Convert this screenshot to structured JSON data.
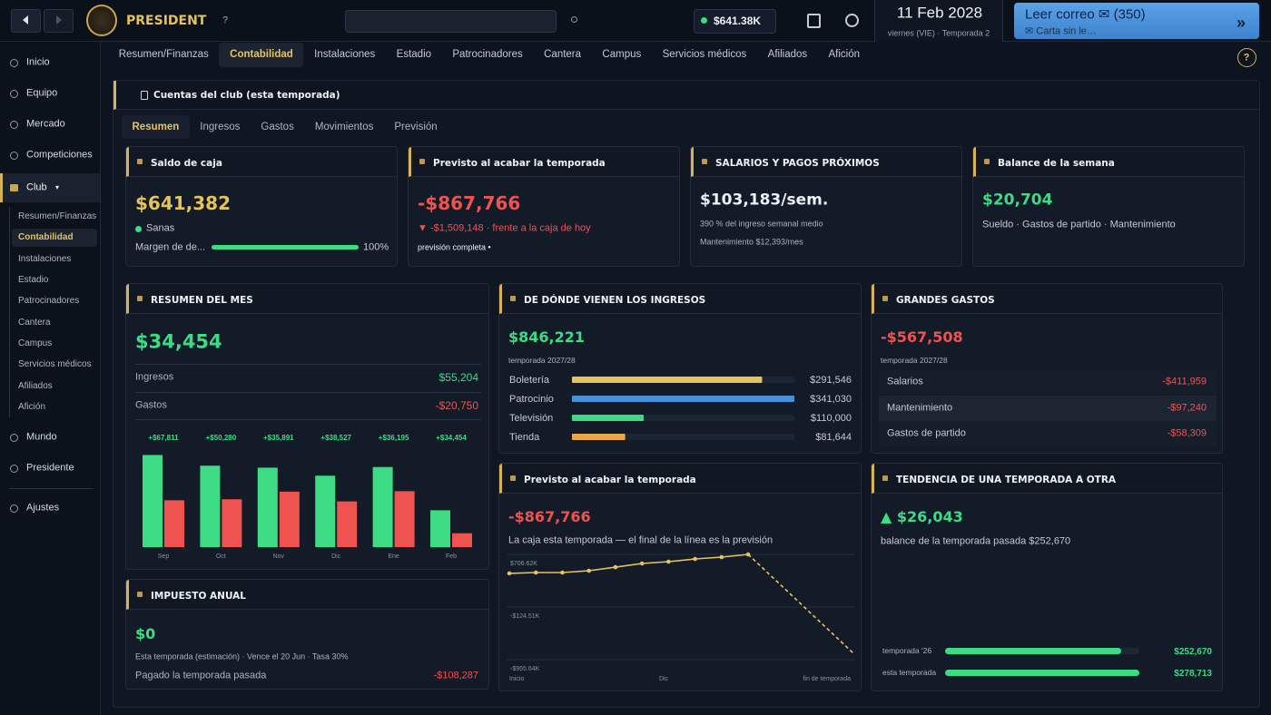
{
  "topbar": {
    "logo": "PRESIDENT",
    "help": "?",
    "balance": "$641.38K",
    "date": "11 Feb 2028",
    "date_sub": "viernes (VIE) · Temporada 2",
    "mail": "Leer correo ✉ (350)",
    "mail_sub": "✉ Carta sin le…",
    "mail_arrow": "»"
  },
  "tabs": {
    "items": [
      "Resumen/Finanzas",
      "Contabilidad",
      "Instalaciones",
      "Estadio",
      "Patrocinadores",
      "Cantera",
      "Campus",
      "Servicios médicos",
      "Afiliados",
      "Afición"
    ],
    "active": 1,
    "help": "?"
  },
  "sidebar": {
    "top": [
      "Inicio",
      "Equipo",
      "Mercado",
      "Competiciones"
    ],
    "club": "Club",
    "club_caret": "▾",
    "sub": [
      "Resumen/Finanzas",
      "Contabilidad",
      "Instalaciones",
      "Estadio",
      "Patrocinadores",
      "Cantera",
      "Campus",
      "Servicios médicos",
      "Afiliados",
      "Afición"
    ],
    "sub_active": 1,
    "bottom": [
      "Mundo",
      "Presidente"
    ],
    "settings": "Ajustes"
  },
  "panel": {
    "title": "Cuentas del club (esta temporada)",
    "subtabs": [
      "Resumen",
      "Ingresos",
      "Gastos",
      "Movimientos",
      "Previsión"
    ],
    "subtab_active": 0
  },
  "cards": {
    "cash": {
      "title": "Saldo de caja",
      "value": "$641,382",
      "status": "Sanas",
      "margin_label": "Margen de de...",
      "margin": {
        "value": 100,
        "label": "100%"
      }
    },
    "forecast": {
      "title": "Previsto al acabar la temporada",
      "value": "-$867,766",
      "delta": "▼ -$1,509,148 · frente a la caja de hoy",
      "note": "previsión completa •"
    },
    "wages": {
      "title": "SALARIOS Y PAGOS PRÓXIMOS",
      "value": "$103,183/sem.",
      "ratio": "390 % del ingreso semanal medio",
      "maintenance": "Mantenimiento $12,393/mes"
    },
    "week": {
      "title": "Balance de la semana",
      "value": "$20,704",
      "note": "Sueldo · Gastos de partido · Mantenimiento"
    }
  },
  "month": {
    "title": "RESUMEN DEL MES",
    "value": "$34,454",
    "rows": [
      {
        "label": "Ingresos",
        "value": "$55,204"
      },
      {
        "label": "Gastos",
        "value": "-$20,750"
      }
    ],
    "chart_data": {
      "type": "bar",
      "categories": [
        "Sep",
        "Oct",
        "Nov",
        "Dic",
        "Ene",
        "Feb"
      ],
      "series": [
        {
          "color": "#3ddc84",
          "values": [
            138000,
            122000,
            119000,
            107000,
            120000,
            55204
          ]
        },
        {
          "color": "#ef5350",
          "values": [
            70189,
            71720,
            83109,
            68473,
            83805,
            20750
          ]
        }
      ],
      "totals": [
        "+$67,811",
        "+$50,280",
        "+$35,891",
        "+$38,527",
        "+$36,195",
        "+$34,454"
      ],
      "ylim": [
        0,
        140000
      ]
    }
  },
  "income": {
    "title": "DE DÓNDE VIENEN LOS INGRESOS",
    "value": "$846,221",
    "period": "temporada 2027/28",
    "chart_data": {
      "type": "hbar",
      "categories": [
        "Boletería",
        "Patrocinio",
        "Televisión",
        "Tienda"
      ],
      "values": [
        291546,
        341030,
        110000,
        81644
      ],
      "value_labels": [
        "$291,546",
        "$341,030",
        "$110,000",
        "$81,644"
      ],
      "colors": [
        "#e6c35c",
        "#4a90d9",
        "#3ddc84",
        "#e8a84a"
      ]
    }
  },
  "expenses": {
    "title": "GRANDES GASTOS",
    "value": "-$567,508",
    "period": "temporada 2027/28",
    "rows": [
      {
        "label": "Salarios",
        "value": "-$411,959"
      },
      {
        "label": "Mantenimiento",
        "value": "-$97,240"
      },
      {
        "label": "Gastos de partido",
        "value": "-$58,309"
      }
    ]
  },
  "tax": {
    "title": "IMPUESTO ANUAL",
    "value": "$0",
    "note": "Esta temporada (estimación) · Vence el 20 Jun · Tasa 30%",
    "paid_label": "Pagado la temporada pasada",
    "paid": "-$108,287"
  },
  "projection": {
    "title": "Previsto al acabar la temporada",
    "value": "-$867,766",
    "note": "La caja esta temporada — el final de la línea es la previsión",
    "chart_data": {
      "type": "line",
      "x": [
        0,
        1,
        2,
        3,
        4,
        5,
        6,
        7,
        8,
        9,
        13
      ],
      "values": [
        406690,
        420020,
        420020,
        448680,
        505000,
        563320,
        592000,
        635000,
        663630,
        706620,
        -867766
      ],
      "forecast_from": 9,
      "xlim": [
        0,
        13
      ],
      "ylim": [
        -955640,
        706620
      ],
      "yticks": [
        {
          "value": 706620,
          "label": "$706.62K"
        },
        {
          "value": -124510,
          "label": "-$124.51K"
        },
        {
          "value": -955640,
          "label": "-$955.64K"
        }
      ],
      "xlabels": [
        "Inicio",
        "Dic",
        "fin de temporada"
      ],
      "color": "#e6c35c"
    }
  },
  "trend": {
    "title": "TENDENCIA DE UNA TEMPORADA A OTRA",
    "value": "▲ $26,043",
    "note": "balance de la temporada pasada $252,670",
    "chart_data": {
      "type": "hbar",
      "categories": [
        "temporada '26",
        "esta temporada"
      ],
      "values": [
        252670,
        278713
      ],
      "value_labels": [
        "$252,670",
        "$278,713"
      ],
      "color": "#3ddc84"
    }
  }
}
